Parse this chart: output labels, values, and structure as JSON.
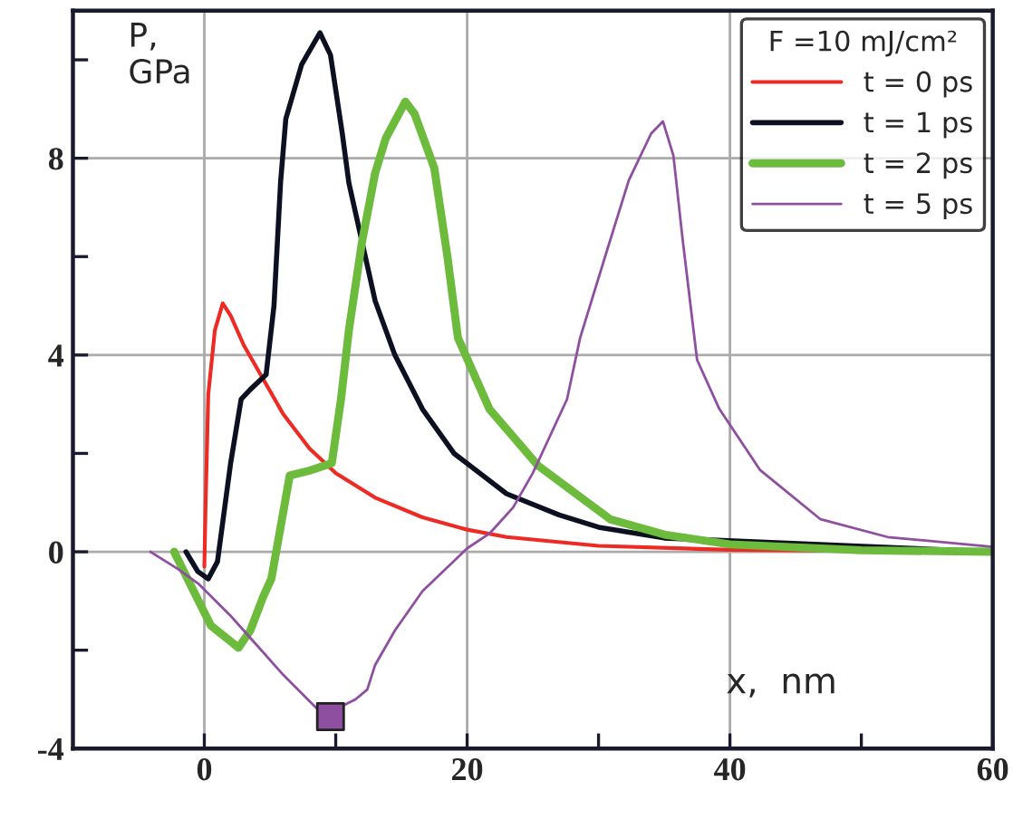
{
  "chart_data": {
    "type": "line",
    "xlabel": "x,  nm",
    "ylabel": "P,\nGPa",
    "legend_title": "F =10 mJ/cm²",
    "legend": "top right",
    "grid": true,
    "marker": "none",
    "line_style": "solid",
    "xlim": [
      -10,
      60
    ],
    "ylim": [
      -4,
      11
    ],
    "xticks": [
      0,
      {
        "value": 10,
        "label": null
      },
      20,
      {
        "value": 30,
        "label": null
      },
      40,
      {
        "value": 50,
        "label": null
      },
      60
    ],
    "yticks": [
      -4,
      {
        "value": -2,
        "label": null
      },
      0,
      {
        "value": 2,
        "label": null
      },
      4,
      {
        "value": 6,
        "label": null
      },
      8,
      {
        "value": 10,
        "label": null
      }
    ],
    "series": [
      {
        "name": "t = 0 ps",
        "color": "#ee2a24",
        "x": [
          0,
          0.1,
          0.3,
          0.8,
          1.4,
          2,
          3,
          4.5,
          6,
          8,
          10,
          13,
          16.6,
          20,
          23,
          30,
          40,
          50,
          60
        ],
        "values": [
          -0.3,
          1,
          3.2,
          4.5,
          5.05,
          4.8,
          4.2,
          3.5,
          2.8,
          2.1,
          1.6,
          1.1,
          0.7,
          0.45,
          0.3,
          0.12,
          0.04,
          null,
          0
        ]
      },
      {
        "name": "t = 1 ps",
        "color": "#0d1020",
        "x": [
          -1.4,
          -0.5,
          0.3,
          1,
          2,
          2.8,
          3.5,
          4.7,
          5.3,
          5.8,
          6.2,
          7.4,
          8.8,
          9.6,
          10.5,
          11,
          12,
          13,
          14.5,
          16.6,
          19,
          23,
          27,
          30,
          35,
          40,
          50,
          60
        ],
        "values": [
          0,
          -0.4,
          -0.55,
          -0.2,
          1.8,
          3.1,
          3.3,
          3.6,
          5,
          7.5,
          8.8,
          9.9,
          10.55,
          10.1,
          8.5,
          7.5,
          6.3,
          5.1,
          4,
          2.9,
          2,
          1.18,
          0.75,
          0.5,
          0.28,
          null,
          null,
          0
        ]
      },
      {
        "name": "t = 2 ps",
        "color": "#6dbb3c",
        "x": [
          -2.3,
          -1,
          0.5,
          2.6,
          3.5,
          4.5,
          5.1,
          5.8,
          6.5,
          8,
          9.7,
          10.4,
          11,
          12,
          13,
          13.8,
          15.3,
          16,
          17.5,
          18.5,
          19.3,
          21.7,
          25.4,
          30.9,
          35,
          40,
          50,
          60
        ],
        "values": [
          0,
          -0.7,
          -1.5,
          -1.95,
          -1.6,
          -0.9,
          -0.55,
          0.5,
          1.55,
          1.65,
          1.8,
          3.1,
          4.5,
          6.3,
          7.7,
          8.4,
          9.15,
          8.9,
          7.8,
          6,
          4.35,
          2.9,
          1.75,
          0.66,
          0.35,
          0.15,
          0.03,
          0
        ]
      },
      {
        "name": "t = 5 ps",
        "color": "#8e4fa0",
        "x": [
          -4.1,
          -2,
          -0.4,
          2,
          4,
          6,
          8.8,
          10,
          11.5,
          12.4,
          13,
          14.5,
          16.6,
          20,
          21.7,
          23.5,
          25,
          27.6,
          28.6,
          30.5,
          32.3,
          34,
          34.9,
          35.7,
          36.4,
          37.5,
          39.2,
          42.3,
          46.9,
          52,
          60
        ],
        "values": [
          0,
          -0.35,
          -0.66,
          -1.3,
          -1.9,
          -2.5,
          -3.25,
          -3.2,
          -3,
          -2.8,
          -2.3,
          -1.6,
          -0.8,
          0.07,
          0.37,
          0.9,
          1.6,
          3.1,
          4.35,
          6,
          7.55,
          8.5,
          8.75,
          8.05,
          6.35,
          3.9,
          2.9,
          1.66,
          0.66,
          0.3,
          0.1
        ]
      },
      {
        "type": "scatter",
        "marker": "square",
        "color": "#8e4fa0",
        "x": [
          9.6
        ],
        "values": [
          -3.35
        ]
      }
    ]
  }
}
